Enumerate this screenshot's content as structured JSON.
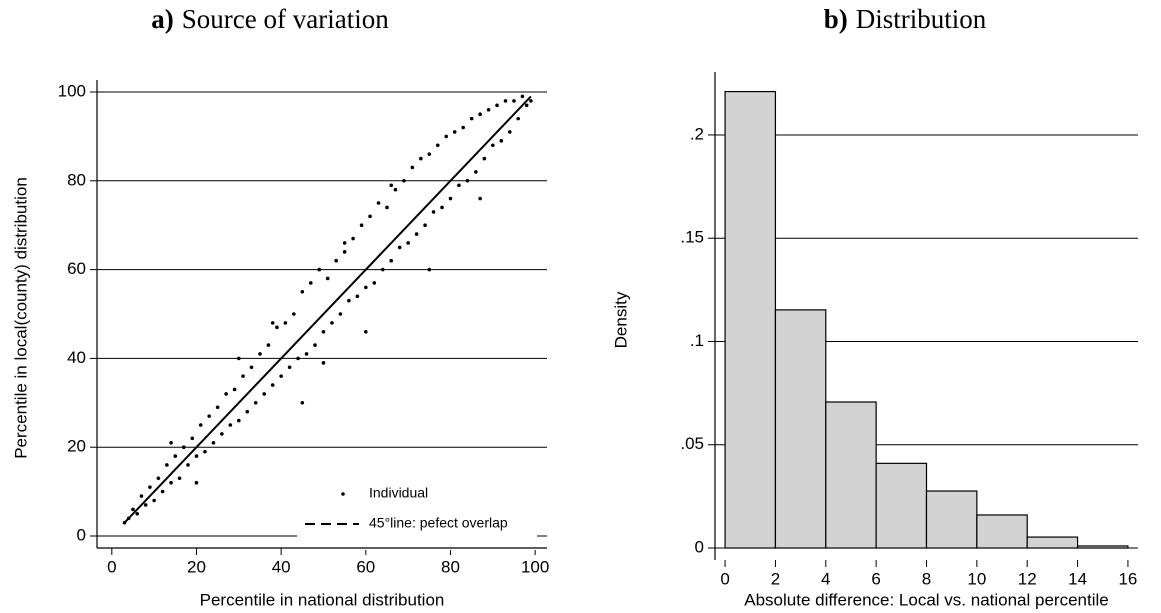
{
  "chart_data": [
    {
      "type": "scatter",
      "panel_label": "a)",
      "title": "Source of variation",
      "x_label": "Percentile in national distribution",
      "y_label": "Percentile in local(county) distribution",
      "xlim": [
        -3.5,
        102.8
      ],
      "ylim": [
        -2.7,
        100.9
      ],
      "xticks": [
        0,
        20,
        40,
        60,
        80,
        100
      ],
      "yticks": [
        0,
        20,
        40,
        60,
        80,
        100
      ],
      "grid": true,
      "legend": "lower right",
      "series": [
        {
          "name": "Individual",
          "color": "#000000",
          "style": "dots",
          "x": [
            3,
            4,
            5,
            6,
            7,
            8,
            9,
            10,
            11,
            12,
            13,
            14,
            14,
            15,
            16,
            17,
            18,
            19,
            20,
            21,
            22,
            23,
            24,
            25,
            26,
            27,
            28,
            29,
            30,
            31,
            32,
            33,
            34,
            35,
            36,
            37,
            38,
            39,
            40,
            41,
            42,
            43,
            44,
            45,
            46,
            47,
            48,
            49,
            50,
            51,
            52,
            53,
            54,
            55,
            56,
            57,
            58,
            59,
            60,
            61,
            62,
            63,
            64,
            65,
            66,
            67,
            68,
            69,
            70,
            71,
            72,
            73,
            74,
            75,
            76,
            77,
            78,
            79,
            80,
            81,
            82,
            83,
            84,
            85,
            86,
            87,
            88,
            89,
            90,
            91,
            92,
            93,
            94,
            95,
            96,
            97,
            98,
            99,
            45,
            60,
            75,
            87,
            38,
            30,
            55,
            66,
            20,
            50
          ],
          "y": [
            3,
            4,
            6,
            5,
            9,
            7,
            11,
            8,
            13,
            10,
            16,
            12,
            21,
            18,
            13,
            20,
            16,
            22,
            18,
            25,
            19,
            27,
            21,
            29,
            23,
            32,
            25,
            33,
            26,
            36,
            28,
            38,
            30,
            41,
            32,
            43,
            34,
            47,
            36,
            48,
            38,
            50,
            40,
            55,
            41,
            57,
            43,
            60,
            46,
            58,
            48,
            62,
            50,
            64,
            53,
            67,
            54,
            70,
            56,
            72,
            57,
            75,
            60,
            74,
            62,
            78,
            65,
            80,
            66,
            83,
            68,
            85,
            70,
            86,
            73,
            88,
            74,
            90,
            76,
            91,
            79,
            92,
            80,
            94,
            82,
            95,
            85,
            96,
            88,
            97,
            89,
            98,
            91,
            98,
            94,
            99,
            97,
            98,
            30,
            46,
            60,
            76,
            48,
            40,
            66,
            79,
            12,
            39
          ]
        },
        {
          "name": "45°line: pefect overlap",
          "color": "#000000",
          "style": "line",
          "x": [
            3,
            99
          ],
          "y": [
            3,
            99
          ]
        }
      ]
    },
    {
      "type": "histogram",
      "panel_label": "b)",
      "title": "Distribution",
      "x_label": "Absolute difference: Local vs. national percentile",
      "y_label": "Density",
      "bins": [
        0,
        2,
        4,
        6,
        8,
        10,
        12,
        14,
        16
      ],
      "values": [
        0.221,
        0.1153,
        0.0707,
        0.041,
        0.0276,
        0.016,
        0.0053,
        0.001
      ],
      "color": "#d3d3d3",
      "xlim": [
        -0.4,
        16.4
      ],
      "ylim": [
        -0.0058,
        0.2266
      ],
      "xticks": [
        0,
        2,
        4,
        6,
        8,
        10,
        12,
        14,
        16
      ],
      "yticks": [
        0,
        {
          "value": 0.05,
          "label": ".05"
        },
        {
          "value": 0.1,
          "label": ".1"
        },
        {
          "value": 0.15,
          "label": ".15"
        },
        {
          "value": 0.2,
          "label": ".2"
        }
      ],
      "grid": true
    }
  ]
}
